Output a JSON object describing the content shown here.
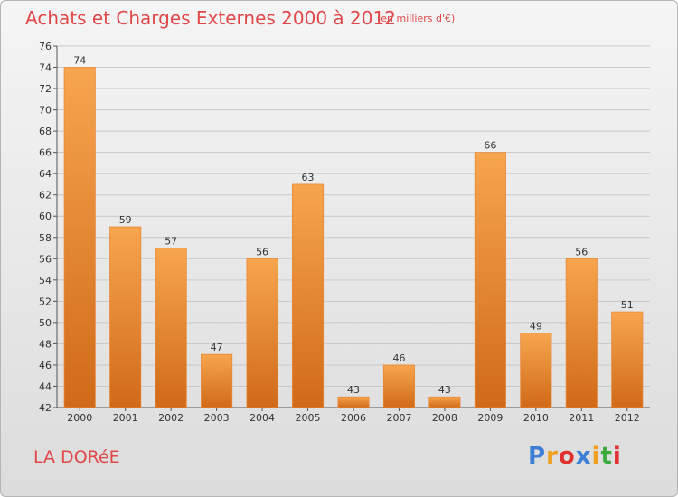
{
  "header": {
    "title": "Achats et Charges Externes 2000 à 2012",
    "subtitle": "(en milliers d'€)"
  },
  "footer": {
    "commune": "LA DORéE",
    "logo": {
      "text": "Proxiti",
      "letters": [
        {
          "char": "P",
          "color": "#3d7fd6"
        },
        {
          "char": "r",
          "color": "#f0a020"
        },
        {
          "char": "o",
          "color": "#e03030"
        },
        {
          "char": "x",
          "color": "#3d7fd6"
        },
        {
          "char": "i",
          "color": "#f0a020"
        },
        {
          "char": "t",
          "color": "#3daa3d"
        },
        {
          "char": "i",
          "color": "#e03030"
        }
      ]
    }
  },
  "colors": {
    "bar_light": "#f7a54e",
    "bar_dark": "#d06a18",
    "grid": "#c8c8c8",
    "accent": "#e0484a"
  },
  "chart_data": {
    "type": "bar",
    "title": "Achats et Charges Externes 2000 à 2012",
    "subtitle": "(en milliers d'€)",
    "categories": [
      "2000",
      "2001",
      "2002",
      "2003",
      "2004",
      "2005",
      "2006",
      "2007",
      "2008",
      "2009",
      "2010",
      "2011",
      "2012"
    ],
    "values": [
      74,
      59,
      57,
      47,
      56,
      63,
      43,
      46,
      43,
      66,
      49,
      56,
      51
    ],
    "ylim": [
      42,
      76
    ],
    "yticks": [
      42,
      44,
      46,
      48,
      50,
      52,
      54,
      56,
      58,
      60,
      62,
      64,
      66,
      68,
      70,
      72,
      74,
      76
    ],
    "grid": true,
    "data_labels": true
  }
}
